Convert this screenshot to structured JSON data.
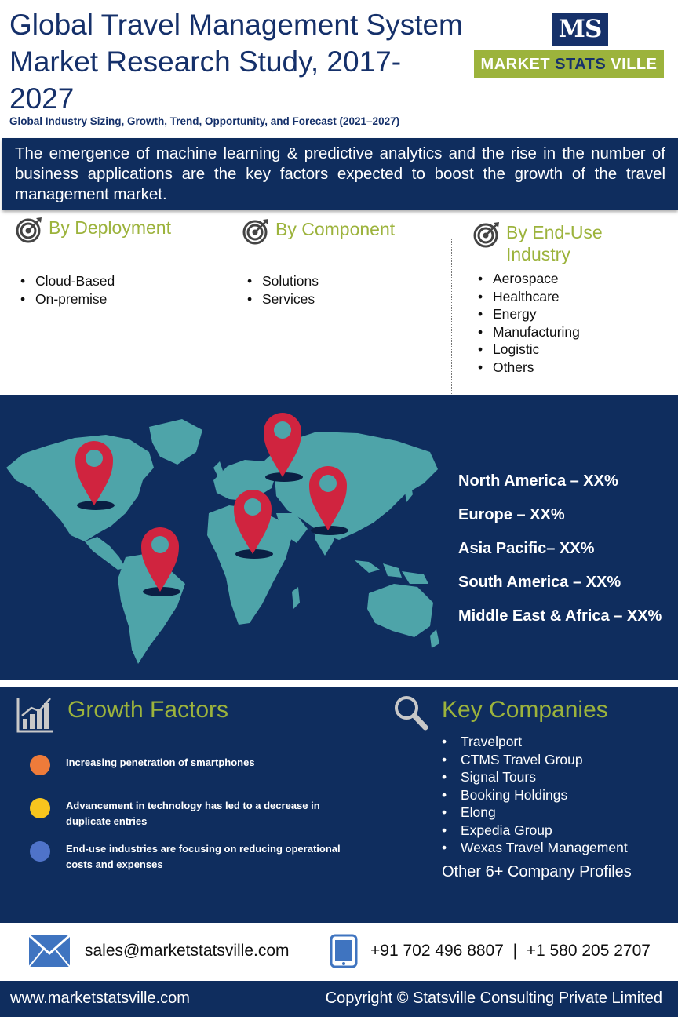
{
  "header": {
    "title": "Global Travel Management System Market Research Study, 2017-2027",
    "subtitle": "Global Industry Sizing, Growth, Trend, Opportunity, and Forecast (2021–2027)"
  },
  "logo": {
    "mark": "MS",
    "word1": "MARKET ",
    "word2": "STATS",
    "word3": " VILLE"
  },
  "banner": {
    "text": "The emergence of machine learning & predictive analytics and the rise in the number of business applications are the key factors expected to boost the growth of the travel management market."
  },
  "segments": [
    {
      "title": "By Deployment",
      "items": [
        "Cloud-Based",
        "On-premise"
      ]
    },
    {
      "title": "By Component",
      "items": [
        "Solutions",
        "Services"
      ]
    },
    {
      "title": "By  End-Use Industry",
      "items": [
        "Aerospace",
        "Healthcare",
        "Energy",
        "Manufacturing",
        "Logistic",
        "Others"
      ]
    }
  ],
  "regions": [
    "North America – XX%",
    "Europe – XX%",
    "Asia Pacific– XX%",
    "South America – XX%",
    "Middle East & Africa – XX%"
  ],
  "growth": {
    "title": "Growth Factors",
    "factors": [
      {
        "text": "Increasing penetration of smartphones",
        "color": "#ee7b3a"
      },
      {
        "text": "Advancement in technology has led to a decrease in duplicate entries",
        "color": "#f7c51e"
      },
      {
        "text": "End-use industries are focusing on reducing operational costs and expenses",
        "color": "#4f73c9"
      }
    ]
  },
  "companies": {
    "title": "Key Companies",
    "items": [
      "Travelport",
      "CTMS Travel Group",
      "Signal Tours",
      "Booking Holdings",
      "Elong",
      "Expedia Group",
      "Wexas Travel Management"
    ],
    "other": "Other 6+ Company Profiles"
  },
  "contact": {
    "email": "sales@marketstatsville.com",
    "phone": "+91 702 496 8807  |  +1 580 205 2707"
  },
  "footer": {
    "website": "www.marketstatsville.com",
    "copyright": "Copyright © Statsville Consulting Private Limited"
  },
  "colors": {
    "navy": "#0f2d5e",
    "accent_green": "#9cb33c",
    "map_land": "#4ea4a9",
    "pin": "#d0243f"
  },
  "icons": [
    "target-icon",
    "bar-chart-icon",
    "magnifier-icon",
    "mail-icon",
    "phone-icon",
    "location-pin-icon"
  ]
}
